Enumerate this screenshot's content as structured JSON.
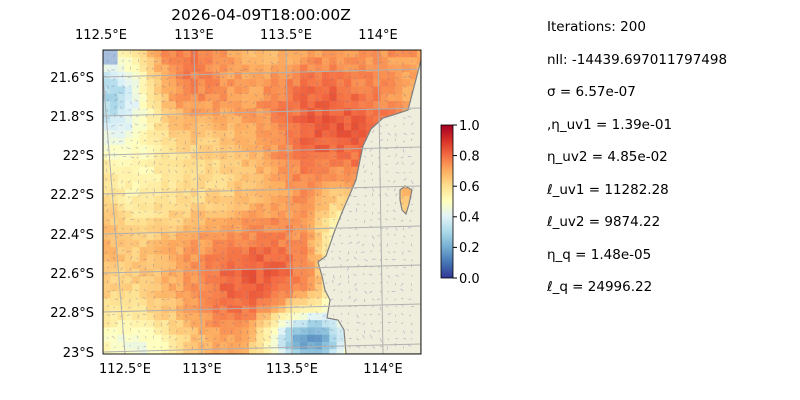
{
  "chart_data": {
    "type": "heatmap",
    "title": "2026-04-09T18:00:00Z",
    "x_ticks_top": [
      "112.5°E",
      "113°E",
      "113.5°E",
      "114°E"
    ],
    "x_ticks_bottom": [
      "112.5°E",
      "113°E",
      "113.5°E",
      "114°E"
    ],
    "y_ticks": [
      "21.6°S",
      "21.8°S",
      "22°S",
      "22.2°S",
      "22.4°S",
      "22.6°S",
      "22.8°S",
      "23°S"
    ],
    "lon_range": [
      112.5,
      114.2
    ],
    "lat_range": [
      -23.0,
      -21.5
    ],
    "colorbar": {
      "ticks": [
        "0.0",
        "0.2",
        "0.4",
        "0.6",
        "0.8",
        "1.0"
      ],
      "range": [
        0,
        1
      ],
      "colormap": "RdYlBu_r"
    },
    "grid": true,
    "background_water_color": "#a5bfdd",
    "land_color": "#efeedc",
    "land_edge_color": "#808080",
    "overlay": "current-vector-arrows"
  },
  "params": [
    "Iterations: 200",
    "nll: -14439.697011797498",
    "σ = 6.57e-07",
    ",η_uv1 = 1.39e-01",
    "η_uv2 = 4.85e-02",
    "ℓ_uv1 = 11282.28",
    "ℓ_uv2 = 9874.22",
    "η_q = 1.48e-05",
    "ℓ_q = 24996.22"
  ]
}
